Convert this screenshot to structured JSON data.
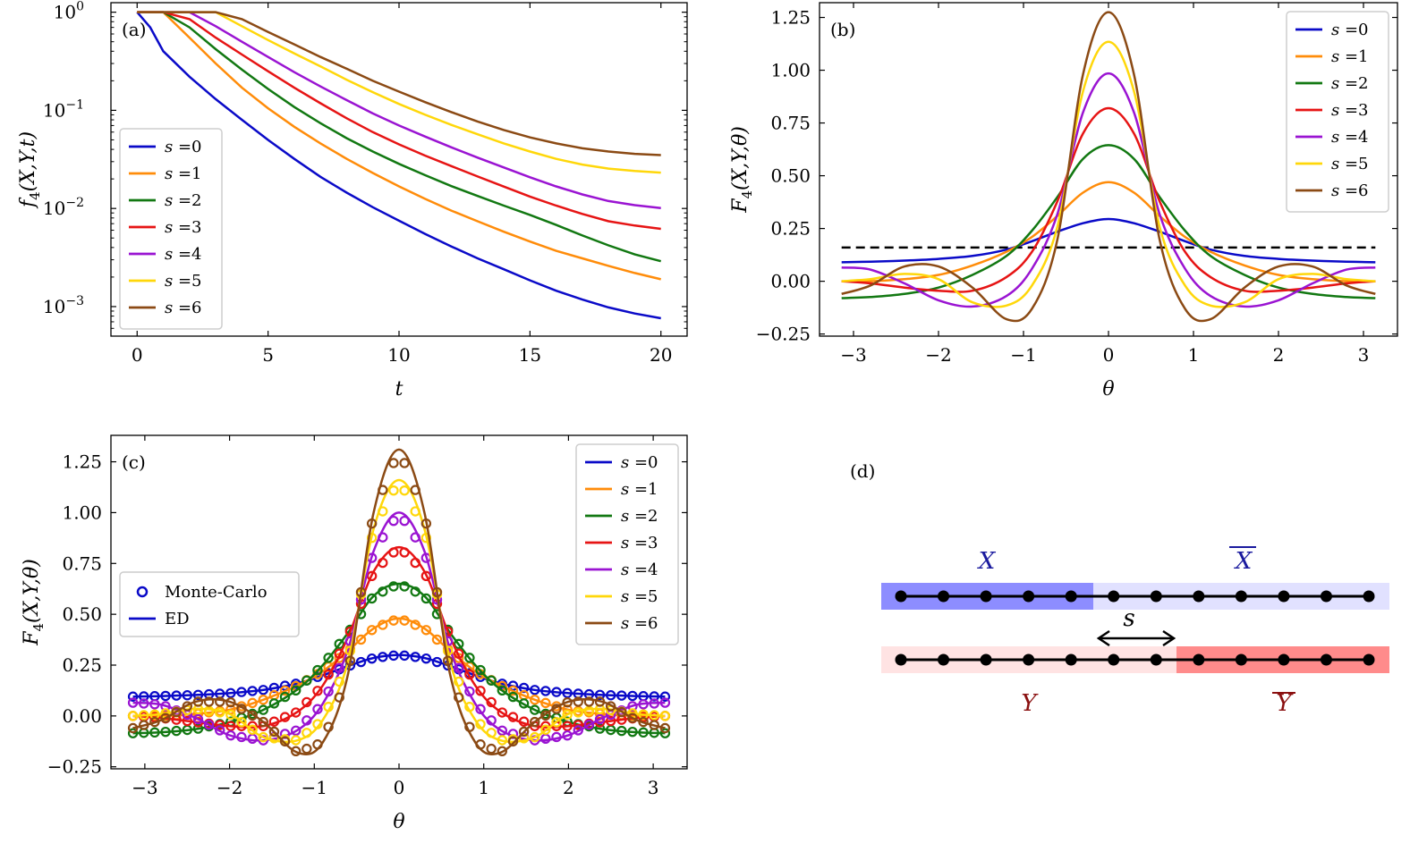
{
  "colors": [
    "#0a0ac8",
    "#ff8c0a",
    "#127812",
    "#e61414",
    "#9a14d2",
    "#ffd70a",
    "#8b4a14"
  ],
  "legend_series": [
    "s =0",
    "s =1",
    "s =2",
    "s =3",
    "s =4",
    "s =5",
    "s =6"
  ],
  "chart_data": [
    {
      "type": "line",
      "panel": "(a)",
      "title": "",
      "xlabel": "t",
      "ylabel": "f4(X,Y,t)",
      "xlim": [
        -1,
        21
      ],
      "ylim": [
        0.0005,
        1.25
      ],
      "yscale": "log",
      "xticks": [
        "0",
        "5",
        "10",
        "15",
        "20"
      ],
      "yticks": [
        "10^0",
        "10^-1",
        "10^-2",
        "10^-3"
      ],
      "legend_position": "lower-left",
      "x": [
        0,
        0.5,
        1,
        2,
        3,
        4,
        5,
        6,
        7,
        8,
        9,
        10,
        11,
        12,
        13,
        14,
        15,
        16,
        17,
        18,
        19,
        20
      ],
      "series": [
        {
          "name": "s =0",
          "values": [
            1.0,
            0.7,
            0.4,
            0.22,
            0.13,
            0.08,
            0.05,
            0.032,
            0.021,
            0.0145,
            0.0103,
            0.0075,
            0.0055,
            0.0041,
            0.0031,
            0.0024,
            0.00185,
            0.00145,
            0.00118,
            0.00098,
            0.00085,
            0.00076
          ]
        },
        {
          "name": "s =1",
          "values": [
            1.0,
            1.0,
            1.0,
            0.55,
            0.3,
            0.17,
            0.105,
            0.068,
            0.046,
            0.032,
            0.023,
            0.0168,
            0.0125,
            0.0095,
            0.0074,
            0.0058,
            0.0046,
            0.0037,
            0.0031,
            0.0026,
            0.0022,
            0.0019
          ]
        },
        {
          "name": "s =2",
          "values": [
            1.0,
            1.0,
            1.0,
            0.7,
            0.42,
            0.26,
            0.165,
            0.108,
            0.074,
            0.052,
            0.038,
            0.0285,
            0.0218,
            0.0169,
            0.0134,
            0.0107,
            0.0086,
            0.0068,
            0.0053,
            0.0042,
            0.0034,
            0.0029
          ]
        },
        {
          "name": "s =3",
          "values": [
            1.0,
            1.0,
            1.0,
            0.85,
            0.55,
            0.37,
            0.25,
            0.17,
            0.118,
            0.083,
            0.06,
            0.045,
            0.0345,
            0.027,
            0.0212,
            0.0167,
            0.0132,
            0.0107,
            0.0088,
            0.0074,
            0.0067,
            0.0062
          ]
        },
        {
          "name": "s =4",
          "values": [
            1.0,
            1.0,
            1.0,
            1.0,
            0.72,
            0.5,
            0.35,
            0.245,
            0.175,
            0.127,
            0.093,
            0.07,
            0.054,
            0.042,
            0.033,
            0.0262,
            0.0208,
            0.0168,
            0.0139,
            0.0119,
            0.0108,
            0.0101
          ]
        },
        {
          "name": "s =5",
          "values": [
            1.0,
            1.0,
            1.0,
            1.0,
            1.0,
            0.72,
            0.52,
            0.38,
            0.28,
            0.205,
            0.153,
            0.116,
            0.09,
            0.071,
            0.057,
            0.046,
            0.038,
            0.032,
            0.028,
            0.0255,
            0.0241,
            0.0232
          ]
        },
        {
          "name": "s =6",
          "values": [
            1.0,
            1.0,
            1.0,
            1.0,
            1.0,
            0.85,
            0.63,
            0.47,
            0.35,
            0.265,
            0.2,
            0.155,
            0.121,
            0.096,
            0.077,
            0.063,
            0.053,
            0.046,
            0.041,
            0.038,
            0.036,
            0.035
          ]
        }
      ]
    },
    {
      "type": "line",
      "panel": "(b)",
      "title": "",
      "xlabel": "θ",
      "ylabel": "F4(X,Y,θ)",
      "xlim": [
        -3.4,
        3.4
      ],
      "ylim": [
        -0.26,
        1.32
      ],
      "xticks": [
        "−3",
        "−2",
        "−1",
        "0",
        "1",
        "2",
        "3"
      ],
      "yticks": [
        "−0.25",
        "0.00",
        "0.25",
        "0.50",
        "0.75",
        "1.00",
        "1.25"
      ],
      "legend_position": "top-right",
      "reference_line": {
        "y": 0.16,
        "style": "dashed"
      },
      "x": [
        -3.14,
        -2.8,
        -2.4,
        -2.0,
        -1.6,
        -1.2,
        -0.9,
        -0.6,
        -0.3,
        0,
        0.3,
        0.6,
        0.9,
        1.2,
        1.6,
        2.0,
        2.4,
        2.8,
        3.14
      ],
      "series": [
        {
          "name": "s =0",
          "values": [
            0.09,
            0.093,
            0.098,
            0.106,
            0.12,
            0.15,
            0.19,
            0.235,
            0.275,
            0.295,
            0.275,
            0.235,
            0.19,
            0.15,
            0.12,
            0.106,
            0.098,
            0.093,
            0.09
          ]
        },
        {
          "name": "s =1",
          "values": [
            0.0,
            0.0,
            0.01,
            0.03,
            0.075,
            0.14,
            0.21,
            0.31,
            0.42,
            0.47,
            0.42,
            0.31,
            0.21,
            0.14,
            0.075,
            0.03,
            0.01,
            0.0,
            0.0
          ]
        },
        {
          "name": "s =2",
          "values": [
            -0.08,
            -0.075,
            -0.06,
            -0.03,
            0.03,
            0.12,
            0.24,
            0.4,
            0.58,
            0.645,
            0.58,
            0.4,
            0.24,
            0.12,
            0.03,
            -0.03,
            -0.06,
            -0.075,
            -0.08
          ]
        },
        {
          "name": "s =3",
          "values": [
            0.0,
            -0.01,
            -0.03,
            -0.045,
            -0.045,
            0.02,
            0.14,
            0.38,
            0.7,
            0.82,
            0.7,
            0.38,
            0.14,
            0.02,
            -0.045,
            -0.045,
            -0.03,
            -0.01,
            0.0
          ]
        },
        {
          "name": "s =4",
          "values": [
            0.065,
            0.055,
            -0.01,
            -0.09,
            -0.12,
            -0.07,
            0.06,
            0.32,
            0.8,
            0.985,
            0.8,
            0.32,
            0.06,
            -0.07,
            -0.12,
            -0.09,
            -0.01,
            0.055,
            0.065
          ]
        },
        {
          "name": "s =5",
          "values": [
            0.0,
            0.01,
            0.035,
            0.01,
            -0.1,
            -0.115,
            -0.02,
            0.26,
            0.9,
            1.135,
            0.9,
            0.26,
            -0.02,
            -0.115,
            -0.1,
            0.01,
            0.035,
            0.01,
            0.0
          ]
        },
        {
          "name": "s =6",
          "values": [
            -0.06,
            -0.02,
            0.07,
            0.07,
            -0.03,
            -0.18,
            -0.13,
            0.2,
            0.98,
            1.275,
            0.98,
            0.2,
            -0.13,
            -0.18,
            -0.03,
            0.07,
            0.07,
            -0.02,
            -0.06
          ]
        }
      ]
    },
    {
      "type": "line",
      "panel": "(c)",
      "title": "",
      "xlabel": "θ",
      "ylabel": "F4(X,Y,θ)",
      "xlim": [
        -3.4,
        3.4
      ],
      "ylim": [
        -0.26,
        1.38
      ],
      "xticks": [
        "−3",
        "−2",
        "−1",
        "0",
        "1",
        "2",
        "3"
      ],
      "yticks": [
        "−0.25",
        "0.00",
        "0.25",
        "0.50",
        "0.75",
        "1.00",
        "1.25"
      ],
      "legend_position": "top-right",
      "legend2": [
        "Monte-Carlo",
        "ED"
      ],
      "x": [
        -3.14,
        -2.8,
        -2.4,
        -2.0,
        -1.6,
        -1.2,
        -0.9,
        -0.6,
        -0.3,
        0,
        0.3,
        0.6,
        0.9,
        1.2,
        1.6,
        2.0,
        2.4,
        2.8,
        3.14
      ],
      "series": [
        {
          "name": "s =0",
          "values": [
            0.095,
            0.098,
            0.103,
            0.112,
            0.128,
            0.16,
            0.2,
            0.245,
            0.285,
            0.3,
            0.285,
            0.245,
            0.2,
            0.16,
            0.128,
            0.112,
            0.103,
            0.098,
            0.095
          ]
        },
        {
          "name": "s =1",
          "values": [
            0.0,
            0.0,
            0.01,
            0.03,
            0.08,
            0.15,
            0.22,
            0.32,
            0.43,
            0.48,
            0.43,
            0.32,
            0.22,
            0.15,
            0.08,
            0.03,
            0.01,
            0.0,
            0.0
          ]
        },
        {
          "name": "s =2",
          "values": [
            -0.085,
            -0.08,
            -0.065,
            -0.03,
            0.03,
            0.13,
            0.25,
            0.41,
            0.59,
            0.65,
            0.59,
            0.41,
            0.25,
            0.13,
            0.03,
            -0.03,
            -0.065,
            -0.08,
            -0.085
          ]
        },
        {
          "name": "s =3",
          "values": [
            0.0,
            -0.01,
            -0.03,
            -0.05,
            -0.05,
            0.02,
            0.15,
            0.39,
            0.71,
            0.83,
            0.71,
            0.39,
            0.15,
            0.02,
            -0.05,
            -0.05,
            -0.03,
            -0.01,
            0.0
          ]
        },
        {
          "name": "s =4",
          "values": [
            0.065,
            0.055,
            -0.01,
            -0.095,
            -0.12,
            -0.07,
            0.06,
            0.33,
            0.81,
            1.0,
            0.81,
            0.33,
            0.06,
            -0.07,
            -0.12,
            -0.095,
            -0.01,
            0.055,
            0.065
          ]
        },
        {
          "name": "s =5",
          "values": [
            0.0,
            0.01,
            0.035,
            0.01,
            -0.105,
            -0.12,
            -0.02,
            0.27,
            0.92,
            1.16,
            0.92,
            0.27,
            -0.02,
            -0.12,
            -0.105,
            0.01,
            0.035,
            0.01,
            0.0
          ]
        },
        {
          "name": "s =6",
          "values": [
            -0.06,
            -0.02,
            0.07,
            0.07,
            -0.03,
            -0.18,
            -0.13,
            0.21,
            1.0,
            1.31,
            1.0,
            0.21,
            -0.13,
            -0.18,
            -0.03,
            0.07,
            0.07,
            -0.02,
            -0.06
          ]
        }
      ]
    }
  ],
  "panel_d": {
    "panel": "(d)",
    "labels": {
      "X": "X",
      "Xbar": "X",
      "Y": "Y",
      "Ybar": "Y",
      "s": "s"
    },
    "sites_per_chain": 12
  }
}
